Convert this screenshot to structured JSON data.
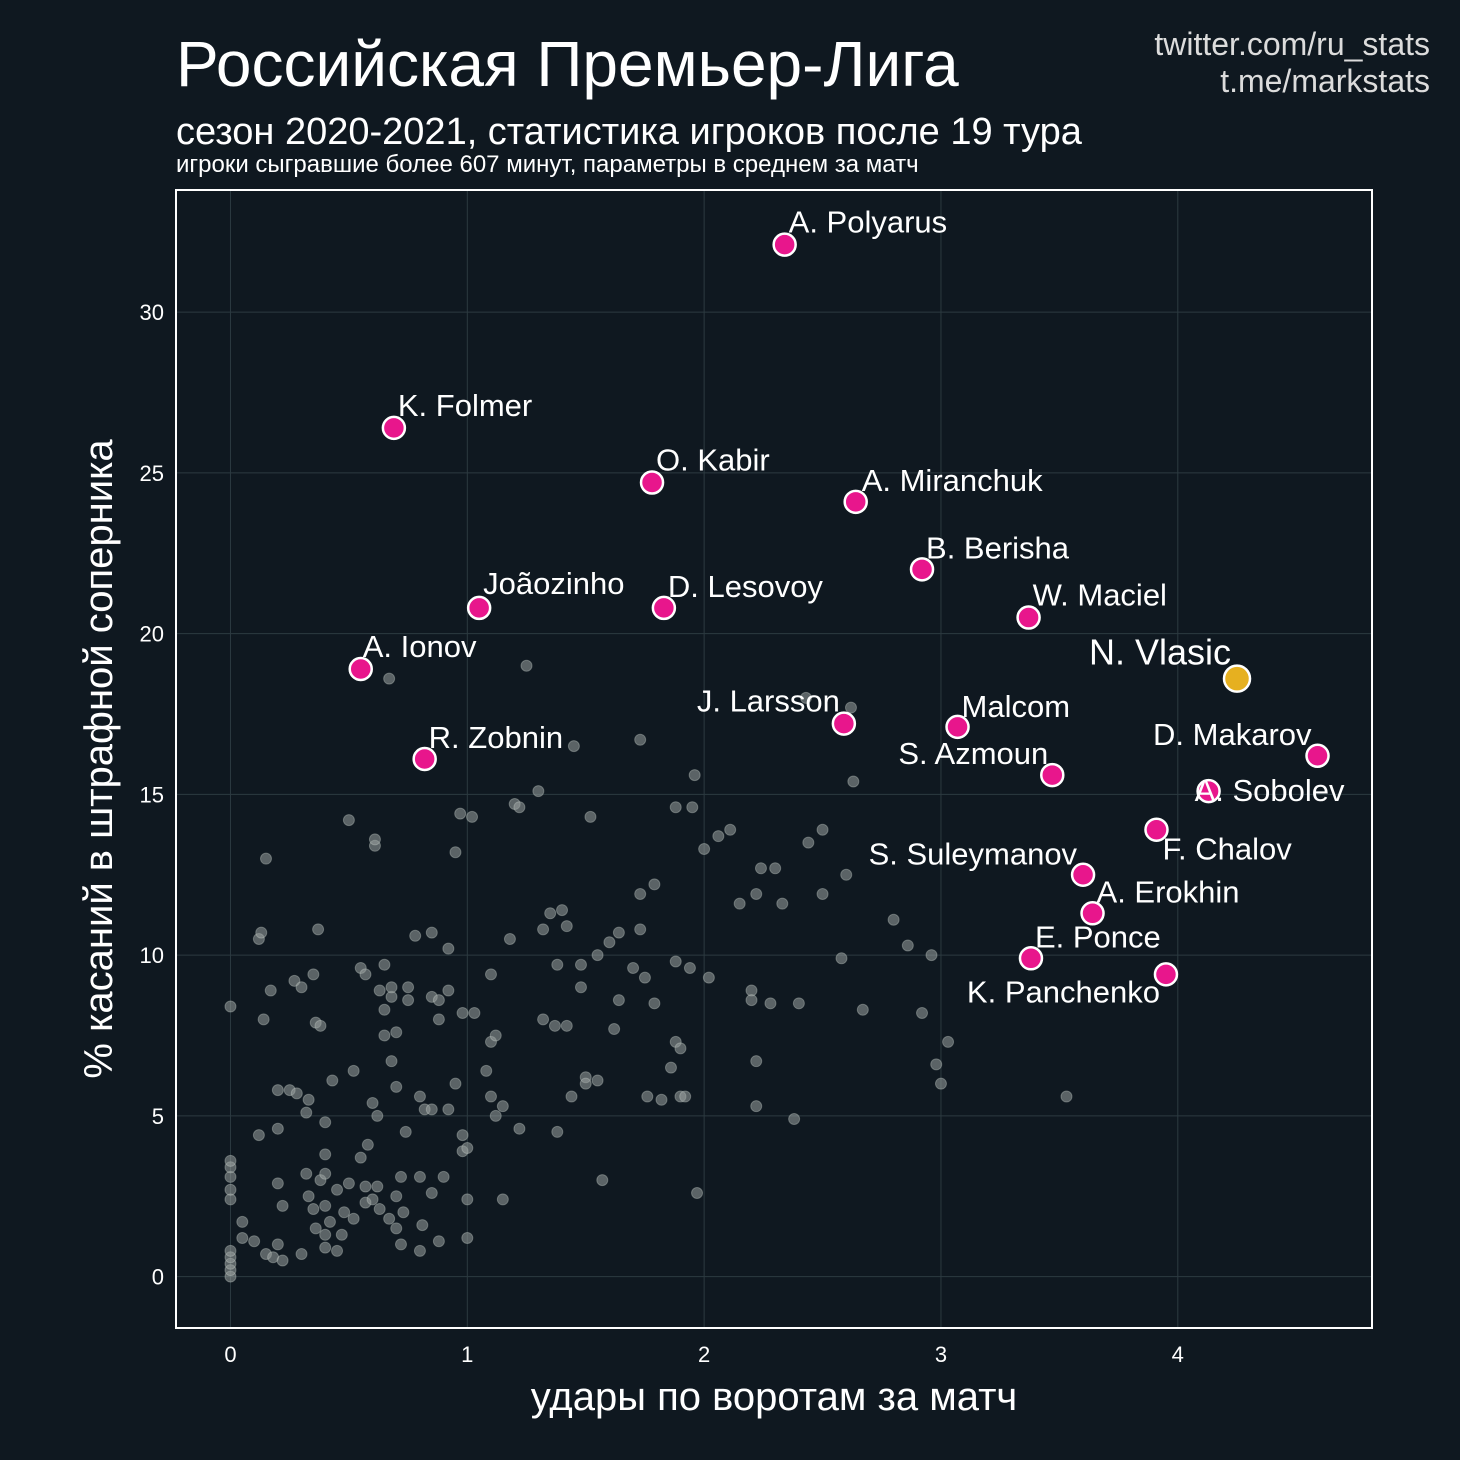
{
  "header": {
    "title": "Российская Премьер-Лига",
    "subtitle": "сезон 2020-2021, статистика игроков после 19 тура",
    "note": "игроки сыгравшие более 607 минут, параметры в среднем за матч",
    "credits": [
      "twitter.com/ru_stats",
      "t.me/markstats"
    ]
  },
  "colors": {
    "background": "#0f1820",
    "highlight": "#e8168c",
    "featured": "#e6b020",
    "other": "#9aa3a0",
    "text": "#ffffff"
  },
  "chart_data": {
    "type": "scatter",
    "xlabel": "удары по воротам за матч",
    "ylabel": "% касаний в штрафной соперника",
    "xlim": [
      -0.23,
      4.82
    ],
    "ylim": [
      -1.6,
      33.8
    ],
    "xticks": [
      0,
      1,
      2,
      3,
      4
    ],
    "yticks": [
      0,
      5,
      10,
      15,
      20,
      25,
      30
    ],
    "grid": true,
    "featured": [
      {
        "name": "N. Vlasic",
        "x": 4.25,
        "y": 18.6
      }
    ],
    "highlighted": [
      {
        "name": "A. Polyarus",
        "x": 2.34,
        "y": 32.1
      },
      {
        "name": "K. Folmer",
        "x": 0.69,
        "y": 26.4
      },
      {
        "name": "O. Kabir",
        "x": 1.78,
        "y": 24.7
      },
      {
        "name": "A. Miranchuk",
        "x": 2.64,
        "y": 24.1
      },
      {
        "name": "B. Berisha",
        "x": 2.92,
        "y": 22.0
      },
      {
        "name": "Joãozinho",
        "x": 1.05,
        "y": 20.8
      },
      {
        "name": "D. Lesovoy",
        "x": 1.83,
        "y": 20.8
      },
      {
        "name": "W. Maciel",
        "x": 3.37,
        "y": 20.5
      },
      {
        "name": "A. Ionov",
        "x": 0.55,
        "y": 18.9
      },
      {
        "name": "J. Larsson",
        "x": 2.59,
        "y": 17.2
      },
      {
        "name": "Malcom",
        "x": 3.07,
        "y": 17.1
      },
      {
        "name": "R. Zobnin",
        "x": 0.82,
        "y": 16.1
      },
      {
        "name": "D. Makarov",
        "x": 4.59,
        "y": 16.2
      },
      {
        "name": "S. Azmoun",
        "x": 3.47,
        "y": 15.6
      },
      {
        "name": "A. Sobolev",
        "x": 4.13,
        "y": 15.1
      },
      {
        "name": "F. Chalov",
        "x": 3.91,
        "y": 13.9
      },
      {
        "name": "S. Suleymanov",
        "x": 3.6,
        "y": 12.5
      },
      {
        "name": "A. Erokhin",
        "x": 3.64,
        "y": 11.3
      },
      {
        "name": "E. Ponce",
        "x": 3.38,
        "y": 9.9
      },
      {
        "name": "K. Panchenko",
        "x": 3.95,
        "y": 9.4
      }
    ],
    "others": [
      [
        0,
        0
      ],
      [
        0,
        0.2
      ],
      [
        0,
        0.4
      ],
      [
        0,
        0.6
      ],
      [
        0,
        0.8
      ],
      [
        0,
        2.4
      ],
      [
        0,
        2.7
      ],
      [
        0,
        3.1
      ],
      [
        0,
        3.4
      ],
      [
        0,
        3.6
      ],
      [
        0,
        8.4
      ],
      [
        0.05,
        1.2
      ],
      [
        0.05,
        1.7
      ],
      [
        0.1,
        1.1
      ],
      [
        0.12,
        10.5
      ],
      [
        0.13,
        10.7
      ],
      [
        0.14,
        8.0
      ],
      [
        0.15,
        13.0
      ],
      [
        0.17,
        8.9
      ],
      [
        0.12,
        4.4
      ],
      [
        0.15,
        0.7
      ],
      [
        0.18,
        0.6
      ],
      [
        0.2,
        1.0
      ],
      [
        0.22,
        0.5
      ],
      [
        0.2,
        2.9
      ],
      [
        0.2,
        4.6
      ],
      [
        0.2,
        5.8
      ],
      [
        0.22,
        2.2
      ],
      [
        0.25,
        5.8
      ],
      [
        0.27,
        9.2
      ],
      [
        0.28,
        5.7
      ],
      [
        0.3,
        9.0
      ],
      [
        0.3,
        0.7
      ],
      [
        0.32,
        3.2
      ],
      [
        0.33,
        2.5
      ],
      [
        0.35,
        9.4
      ],
      [
        0.33,
        5.5
      ],
      [
        0.32,
        5.1
      ],
      [
        0.35,
        2.1
      ],
      [
        0.36,
        1.5
      ],
      [
        0.37,
        10.8
      ],
      [
        0.36,
        7.9
      ],
      [
        0.38,
        7.8
      ],
      [
        0.38,
        3.0
      ],
      [
        0.4,
        0.9
      ],
      [
        0.4,
        2.2
      ],
      [
        0.4,
        1.3
      ],
      [
        0.4,
        3.8
      ],
      [
        0.4,
        4.8
      ],
      [
        0.4,
        3.2
      ],
      [
        0.42,
        1.7
      ],
      [
        0.43,
        6.1
      ],
      [
        0.45,
        0.8
      ],
      [
        0.45,
        2.7
      ],
      [
        0.47,
        1.3
      ],
      [
        0.48,
        2.0
      ],
      [
        0.5,
        2.9
      ],
      [
        0.5,
        14.2
      ],
      [
        0.52,
        1.8
      ],
      [
        0.52,
        6.4
      ],
      [
        0.55,
        3.7
      ],
      [
        0.55,
        9.6
      ],
      [
        0.57,
        9.4
      ],
      [
        0.57,
        2.8
      ],
      [
        0.57,
        2.3
      ],
      [
        0.58,
        4.1
      ],
      [
        0.6,
        2.4
      ],
      [
        0.6,
        5.4
      ],
      [
        0.61,
        13.4
      ],
      [
        0.61,
        13.6
      ],
      [
        0.62,
        5.0
      ],
      [
        0.62,
        2.8
      ],
      [
        0.63,
        2.1
      ],
      [
        0.63,
        8.9
      ],
      [
        0.65,
        8.3
      ],
      [
        0.65,
        9.7
      ],
      [
        0.65,
        7.5
      ],
      [
        0.67,
        1.8
      ],
      [
        0.67,
        18.6
      ],
      [
        0.68,
        8.7
      ],
      [
        0.68,
        9.0
      ],
      [
        0.68,
        6.7
      ],
      [
        0.7,
        5.9
      ],
      [
        0.7,
        2.5
      ],
      [
        0.7,
        1.5
      ],
      [
        0.7,
        7.6
      ],
      [
        0.72,
        3.1
      ],
      [
        0.72,
        1.0
      ],
      [
        0.73,
        2.0
      ],
      [
        0.74,
        4.5
      ],
      [
        0.75,
        9.0
      ],
      [
        0.75,
        8.6
      ],
      [
        0.78,
        10.6
      ],
      [
        0.8,
        3.1
      ],
      [
        0.8,
        5.6
      ],
      [
        0.8,
        0.8
      ],
      [
        0.81,
        1.6
      ],
      [
        0.82,
        5.2
      ],
      [
        0.85,
        8.7
      ],
      [
        0.85,
        10.7
      ],
      [
        0.85,
        2.6
      ],
      [
        0.85,
        5.2
      ],
      [
        0.88,
        8.6
      ],
      [
        0.88,
        1.1
      ],
      [
        0.88,
        8.0
      ],
      [
        0.9,
        3.1
      ],
      [
        0.92,
        10.2
      ],
      [
        0.92,
        5.2
      ],
      [
        0.92,
        8.9
      ],
      [
        0.95,
        13.2
      ],
      [
        0.95,
        6.0
      ],
      [
        0.97,
        14.4
      ],
      [
        0.98,
        4.4
      ],
      [
        0.98,
        3.9
      ],
      [
        0.98,
        8.2
      ],
      [
        1.0,
        2.4
      ],
      [
        1.0,
        1.2
      ],
      [
        1.0,
        4.0
      ],
      [
        1.02,
        14.3
      ],
      [
        1.03,
        8.2
      ],
      [
        1.08,
        6.4
      ],
      [
        1.1,
        5.6
      ],
      [
        1.1,
        9.4
      ],
      [
        1.1,
        7.3
      ],
      [
        1.12,
        7.5
      ],
      [
        1.12,
        5.0
      ],
      [
        1.15,
        5.3
      ],
      [
        1.15,
        2.4
      ],
      [
        1.18,
        10.5
      ],
      [
        1.2,
        14.7
      ],
      [
        1.22,
        14.6
      ],
      [
        1.22,
        4.6
      ],
      [
        1.25,
        19.0
      ],
      [
        1.3,
        15.1
      ],
      [
        1.32,
        8.0
      ],
      [
        1.32,
        10.8
      ],
      [
        1.35,
        11.3
      ],
      [
        1.37,
        7.8
      ],
      [
        1.38,
        9.7
      ],
      [
        1.38,
        4.5
      ],
      [
        1.4,
        11.4
      ],
      [
        1.42,
        7.8
      ],
      [
        1.42,
        10.9
      ],
      [
        1.44,
        5.6
      ],
      [
        1.45,
        16.5
      ],
      [
        1.48,
        9.7
      ],
      [
        1.48,
        9.0
      ],
      [
        1.5,
        6.2
      ],
      [
        1.5,
        6.0
      ],
      [
        1.52,
        14.3
      ],
      [
        1.55,
        10.0
      ],
      [
        1.55,
        6.1
      ],
      [
        1.57,
        3.0
      ],
      [
        1.6,
        10.4
      ],
      [
        1.62,
        7.7
      ],
      [
        1.64,
        10.7
      ],
      [
        1.64,
        8.6
      ],
      [
        1.7,
        9.6
      ],
      [
        1.73,
        11.9
      ],
      [
        1.73,
        16.7
      ],
      [
        1.73,
        10.8
      ],
      [
        1.75,
        9.3
      ],
      [
        1.76,
        5.6
      ],
      [
        1.79,
        12.2
      ],
      [
        1.79,
        8.5
      ],
      [
        1.82,
        5.5
      ],
      [
        1.86,
        6.5
      ],
      [
        1.88,
        9.8
      ],
      [
        1.88,
        7.3
      ],
      [
        1.88,
        14.6
      ],
      [
        1.9,
        7.1
      ],
      [
        1.9,
        5.6
      ],
      [
        1.92,
        5.6
      ],
      [
        1.94,
        9.6
      ],
      [
        1.95,
        14.6
      ],
      [
        1.96,
        15.6
      ],
      [
        1.97,
        2.6
      ],
      [
        2.0,
        13.3
      ],
      [
        2.02,
        9.3
      ],
      [
        2.06,
        13.7
      ],
      [
        2.11,
        13.9
      ],
      [
        2.15,
        11.6
      ],
      [
        2.2,
        8.9
      ],
      [
        2.2,
        8.6
      ],
      [
        2.22,
        11.9
      ],
      [
        2.22,
        6.7
      ],
      [
        2.22,
        5.3
      ],
      [
        2.24,
        12.7
      ],
      [
        2.28,
        8.5
      ],
      [
        2.3,
        12.7
      ],
      [
        2.33,
        11.6
      ],
      [
        2.38,
        4.9
      ],
      [
        2.4,
        8.5
      ],
      [
        2.43,
        18.0
      ],
      [
        2.44,
        13.5
      ],
      [
        2.5,
        11.9
      ],
      [
        2.5,
        13.9
      ],
      [
        2.58,
        9.9
      ],
      [
        2.6,
        12.5
      ],
      [
        2.62,
        17.7
      ],
      [
        2.63,
        15.4
      ],
      [
        2.67,
        8.3
      ],
      [
        2.8,
        11.1
      ],
      [
        2.86,
        10.3
      ],
      [
        2.92,
        8.2
      ],
      [
        2.96,
        10.0
      ],
      [
        2.98,
        6.6
      ],
      [
        3.0,
        6.0
      ],
      [
        3.03,
        7.3
      ],
      [
        3.53,
        5.6
      ]
    ]
  }
}
